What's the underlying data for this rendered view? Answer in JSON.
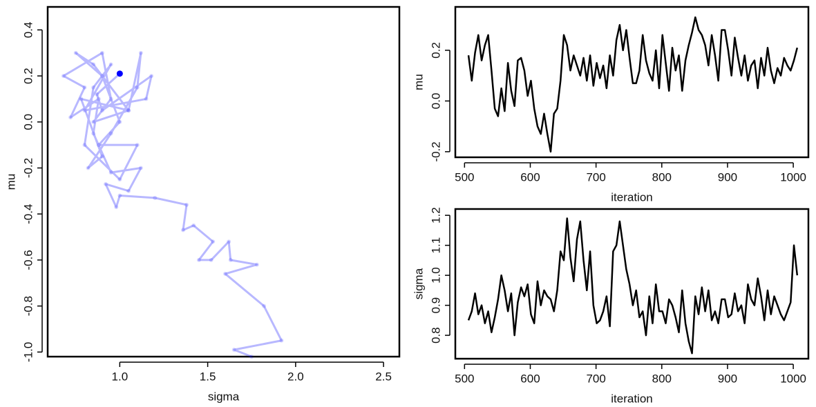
{
  "chart_data": [
    {
      "type": "scatter",
      "x_label": "sigma",
      "y_label": "mu",
      "color": "#0000ff",
      "x": [
        1.75,
        1.65,
        1.92,
        1.82,
        1.6,
        1.78,
        1.63,
        1.62,
        1.52,
        1.45,
        1.53,
        1.42,
        1.36,
        1.38,
        1.2,
        1.0,
        0.98,
        0.92,
        1.05,
        1.12,
        0.95,
        0.85,
        0.88,
        0.72,
        0.8,
        0.68,
        0.9,
        0.95,
        0.85,
        1.05,
        0.78,
        0.9,
        0.82,
        0.95,
        1.1,
        1.12,
        1.05,
        0.85,
        0.75,
        0.9,
        1.0,
        0.88,
        1.1,
        1.0,
        0.8,
        0.85,
        0.95,
        0.8,
        1.15,
        1.18,
        0.9,
        0.87,
        1.0
      ],
      "values": [
        -1.02,
        -0.99,
        -0.95,
        -0.8,
        -0.66,
        -0.62,
        -0.6,
        -0.52,
        -0.6,
        -0.6,
        -0.52,
        -0.45,
        -0.47,
        -0.36,
        -0.33,
        -0.32,
        -0.37,
        -0.27,
        -0.3,
        -0.2,
        -0.22,
        -0.05,
        0.1,
        0.02,
        0.15,
        0.2,
        0.3,
        0.1,
        0.0,
        0.05,
        0.1,
        -0.15,
        -0.2,
        -0.05,
        0.15,
        0.3,
        0.05,
        0.25,
        0.3,
        0.2,
        0.0,
        -0.1,
        -0.1,
        -0.25,
        -0.1,
        0.15,
        0.25,
        0.05,
        0.1,
        0.2,
        0.05,
        0.12,
        0.21
      ],
      "xlim": [
        0.59,
        2.59
      ],
      "xticks": [
        {
          "value": 1.0,
          "label": "1.0"
        },
        1.5,
        {
          "value": 2.0,
          "label": "2.0"
        },
        2.5
      ],
      "ylim": [
        -1.02,
        0.5
      ],
      "yticks": [
        {
          "value": -1.0,
          "label": "-1.0"
        },
        -0.8,
        -0.6,
        -0.4,
        -0.2,
        {
          "value": 0.0,
          "label": "0.0"
        },
        0.2,
        0.4
      ]
    },
    {
      "type": "line",
      "x_label": "iteration",
      "y_label": "mu",
      "color": "#000000",
      "x": [
        506,
        511,
        516,
        521,
        526,
        531,
        536,
        541,
        546,
        551,
        556,
        561,
        566,
        571,
        576,
        581,
        586,
        591,
        596,
        601,
        606,
        611,
        616,
        621,
        626,
        631,
        636,
        641,
        646,
        651,
        656,
        661,
        666,
        671,
        676,
        681,
        686,
        691,
        696,
        701,
        706,
        711,
        716,
        721,
        726,
        731,
        736,
        741,
        746,
        751,
        756,
        761,
        766,
        771,
        776,
        781,
        786,
        791,
        796,
        801,
        806,
        811,
        816,
        821,
        826,
        831,
        836,
        841,
        846,
        851,
        856,
        861,
        866,
        871,
        876,
        881,
        886,
        891,
        896,
        901,
        906,
        911,
        916,
        921,
        926,
        931,
        936,
        941,
        946,
        951,
        956,
        961,
        966,
        971,
        976,
        981,
        986,
        991,
        996,
        1001,
        1006
      ],
      "values": [
        0.18,
        0.08,
        0.19,
        0.26,
        0.16,
        0.22,
        0.26,
        0.12,
        -0.03,
        -0.06,
        0.05,
        -0.04,
        0.15,
        0.04,
        -0.02,
        0.16,
        0.17,
        0.12,
        0.02,
        0.08,
        -0.03,
        -0.1,
        -0.13,
        -0.05,
        -0.13,
        -0.2,
        -0.05,
        -0.03,
        0.08,
        0.26,
        0.22,
        0.12,
        0.18,
        0.14,
        0.1,
        0.17,
        0.08,
        0.18,
        0.06,
        0.15,
        0.09,
        0.14,
        0.05,
        0.18,
        0.1,
        0.24,
        0.3,
        0.2,
        0.28,
        0.17,
        0.07,
        0.07,
        0.12,
        0.26,
        0.16,
        0.11,
        0.08,
        0.2,
        0.05,
        0.26,
        0.15,
        0.04,
        0.21,
        0.12,
        0.18,
        0.04,
        0.16,
        0.22,
        0.27,
        0.33,
        0.28,
        0.26,
        0.22,
        0.14,
        0.26,
        0.18,
        0.08,
        0.28,
        0.28,
        0.2,
        0.1,
        0.25,
        0.17,
        0.1,
        0.18,
        0.08,
        0.14,
        0.16,
        0.05,
        0.17,
        0.1,
        0.21,
        0.12,
        0.07,
        0.13,
        0.1,
        0.17,
        0.14,
        0.12,
        0.16,
        0.21
      ],
      "xlim": [
        486,
        1023
      ],
      "xticks": [
        500,
        600,
        700,
        800,
        900,
        1000
      ],
      "ylim": [
        -0.222,
        0.371
      ],
      "yticks": [
        -0.2,
        {
          "value": 0.0,
          "label": "0.0"
        },
        0.2
      ]
    },
    {
      "type": "line",
      "x_label": "iteration",
      "y_label": "sigma",
      "color": "#000000",
      "x": [
        506,
        511,
        516,
        521,
        526,
        531,
        536,
        541,
        546,
        551,
        556,
        561,
        566,
        571,
        576,
        581,
        586,
        591,
        596,
        601,
        606,
        611,
        616,
        621,
        626,
        631,
        636,
        641,
        646,
        651,
        656,
        661,
        666,
        671,
        676,
        681,
        686,
        691,
        696,
        701,
        706,
        711,
        716,
        721,
        726,
        731,
        736,
        741,
        746,
        751,
        756,
        761,
        766,
        771,
        776,
        781,
        786,
        791,
        796,
        801,
        806,
        811,
        816,
        821,
        826,
        831,
        836,
        841,
        846,
        851,
        856,
        861,
        866,
        871,
        876,
        881,
        886,
        891,
        896,
        901,
        906,
        911,
        916,
        921,
        926,
        931,
        936,
        941,
        946,
        951,
        956,
        961,
        966,
        971,
        976,
        981,
        986,
        991,
        996,
        1001,
        1006
      ],
      "values": [
        0.85,
        0.88,
        0.94,
        0.87,
        0.9,
        0.84,
        0.88,
        0.81,
        0.86,
        0.92,
        1.0,
        0.95,
        0.88,
        0.94,
        0.8,
        0.91,
        0.96,
        0.93,
        0.97,
        0.87,
        0.84,
        0.98,
        0.9,
        0.95,
        0.93,
        0.92,
        0.88,
        0.95,
        1.08,
        1.05,
        1.19,
        1.06,
        0.98,
        1.12,
        1.18,
        1.05,
        0.95,
        1.08,
        0.9,
        0.84,
        0.85,
        0.88,
        0.93,
        0.83,
        1.08,
        1.1,
        1.18,
        1.1,
        1.02,
        0.97,
        0.9,
        0.95,
        0.86,
        0.88,
        0.8,
        0.93,
        0.84,
        0.97,
        0.88,
        0.88,
        0.84,
        0.92,
        0.9,
        0.86,
        0.81,
        0.95,
        0.84,
        0.78,
        0.74,
        0.93,
        0.87,
        0.96,
        0.88,
        0.95,
        0.85,
        0.88,
        0.84,
        0.92,
        0.92,
        0.86,
        0.87,
        0.94,
        0.88,
        0.9,
        0.84,
        0.97,
        0.92,
        0.9,
        0.99,
        0.93,
        0.85,
        0.95,
        0.87,
        0.93,
        0.9,
        0.87,
        0.85,
        0.88,
        0.91,
        1.1,
        1.0
      ],
      "xlim": [
        486,
        1023
      ],
      "xticks": [
        500,
        600,
        700,
        800,
        900,
        1000
      ],
      "ylim": [
        0.722,
        1.221
      ],
      "yticks": [
        0.8,
        0.9,
        {
          "value": 1.0,
          "label": "1.0"
        },
        1.1,
        1.2
      ]
    }
  ]
}
